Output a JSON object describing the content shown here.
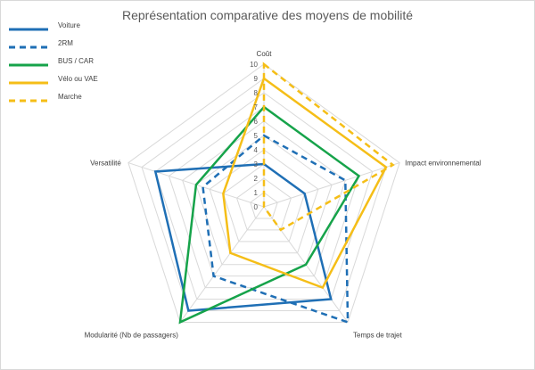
{
  "chart_data": {
    "type": "radar",
    "title": "Représentation comparative des moyens de mobilité",
    "axes": [
      "Coût",
      "Impact environnemental",
      "Temps de trajet",
      "Modularité (Nb de passagers)",
      "Versatilité"
    ],
    "radial_ticks": [
      "0",
      "1",
      "2",
      "3",
      "4",
      "5",
      "6",
      "7",
      "8",
      "9",
      "10"
    ],
    "rlim": [
      0,
      10
    ],
    "grid": true,
    "legend_position": "top-left",
    "series": [
      {
        "name": "Voiture",
        "values": [
          3,
          3,
          8,
          9,
          8
        ],
        "color": "#1f6fb5",
        "dash": "solid"
      },
      {
        "name": "2RM",
        "values": [
          5,
          6,
          10,
          6,
          4.5
        ],
        "color": "#1f6fb5",
        "dash": "dashed"
      },
      {
        "name": "BUS / CAR",
        "values": [
          7,
          7,
          5,
          10,
          5
        ],
        "color": "#16a34a",
        "dash": "solid"
      },
      {
        "name": "Vélo ou VAE",
        "values": [
          9,
          9,
          7,
          4,
          3
        ],
        "color": "#f5be17",
        "dash": "solid"
      },
      {
        "name": "Marche",
        "values": [
          10,
          9.5,
          2,
          0,
          0
        ],
        "color": "#f5be17",
        "dash": "dashed"
      }
    ]
  }
}
